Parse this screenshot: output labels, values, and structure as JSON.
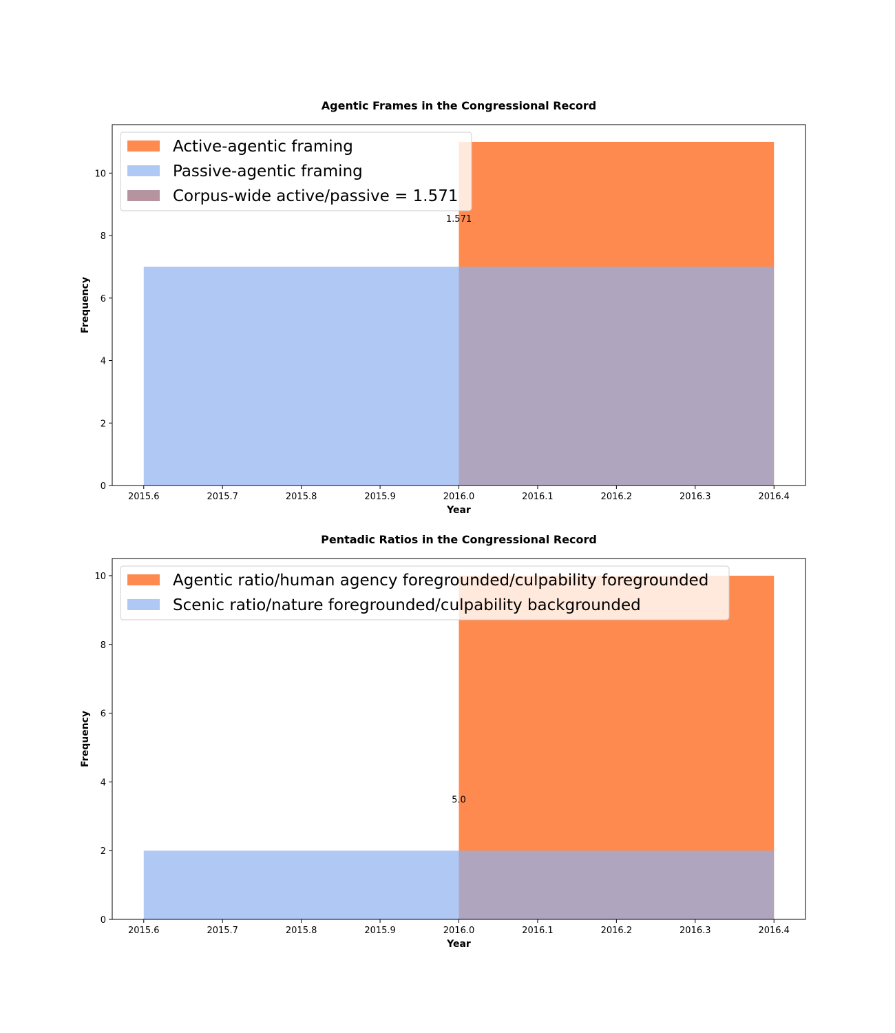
{
  "chart_data": [
    {
      "type": "bar",
      "title": "Agentic Frames in the Congressional Record",
      "xlabel": "Year",
      "ylabel": "Frequency",
      "xlim": [
        2015.56,
        2016.44
      ],
      "ylim": [
        0,
        11.55
      ],
      "xticks": [
        "2015.6",
        "2015.7",
        "2015.8",
        "2015.9",
        "2016.0",
        "2016.1",
        "2016.2",
        "2016.3",
        "2016.4"
      ],
      "yticks": [
        "0",
        "2",
        "4",
        "6",
        "8",
        "10"
      ],
      "grid": false,
      "legend_position": "top-left",
      "series": [
        {
          "name": "Active-agentic framing",
          "color": "#ff8a4f",
          "opacity": 1.0,
          "bars": [
            {
              "x0": 2016.0,
              "x1": 2016.4,
              "value": 11
            }
          ]
        },
        {
          "name": "Passive-agentic framing",
          "color": "#8fb0f0",
          "opacity": 0.7,
          "bars": [
            {
              "x0": 2015.6,
              "x1": 2016.4,
              "value": 7
            }
          ]
        }
      ],
      "legend_extra": [
        {
          "name": "Corpus-wide active/passive = 1.571",
          "color": "#b5949f"
        }
      ],
      "annotations": [
        {
          "text": "1.571",
          "x": 2016.0,
          "y": 8.55
        }
      ]
    },
    {
      "type": "bar",
      "title": "Pentadic Ratios in the Congressional Record",
      "xlabel": "Year",
      "ylabel": "Frequency",
      "xlim": [
        2015.56,
        2016.44
      ],
      "ylim": [
        0,
        10.5
      ],
      "xticks": [
        "2015.6",
        "2015.7",
        "2015.8",
        "2015.9",
        "2016.0",
        "2016.1",
        "2016.2",
        "2016.3",
        "2016.4"
      ],
      "yticks": [
        "0",
        "2",
        "4",
        "6",
        "8",
        "10"
      ],
      "grid": false,
      "legend_position": "top-left",
      "series": [
        {
          "name": "Agentic ratio/human agency foregrounded/culpability foregrounded",
          "color": "#ff8a4f",
          "opacity": 1.0,
          "bars": [
            {
              "x0": 2016.0,
              "x1": 2016.4,
              "value": 10
            }
          ]
        },
        {
          "name": "Scenic ratio/nature foregrounded/culpability backgrounded",
          "color": "#8fb0f0",
          "opacity": 0.7,
          "bars": [
            {
              "x0": 2015.6,
              "x1": 2016.4,
              "value": 2
            }
          ]
        }
      ],
      "legend_extra": [],
      "annotations": [
        {
          "text": "5.0",
          "x": 2016.0,
          "y": 3.5
        }
      ]
    }
  ]
}
